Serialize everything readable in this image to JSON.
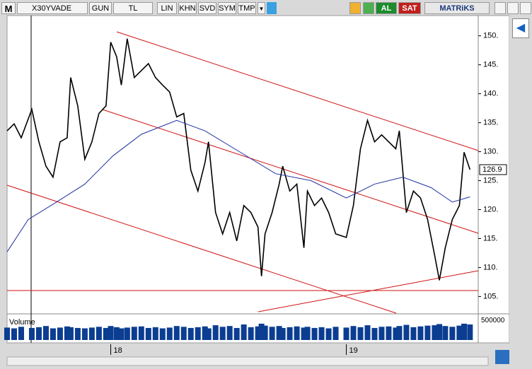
{
  "toolbar": {
    "logo": "M",
    "symbol": "X30YVADE",
    "period": "GUN",
    "currency": "TL",
    "buttons": [
      "LIN",
      "KHN",
      "SVD",
      "SYM",
      "TMP"
    ],
    "buy": "AL",
    "sell": "SAT",
    "brand": "MATRiKS"
  },
  "chart_data": [
    {
      "type": "line",
      "xlim": [
        17.56,
        19.56
      ],
      "xticks": [
        18,
        19
      ],
      "ylim": [
        102,
        153.5
      ],
      "yticks": [
        {
          "value": 105,
          "label": "105."
        },
        {
          "value": 110,
          "label": "110."
        },
        {
          "value": 115,
          "label": "115."
        },
        {
          "value": 120,
          "label": "120."
        },
        {
          "value": 125,
          "label": "125."
        },
        {
          "value": 130,
          "label": "130."
        },
        {
          "value": 135,
          "label": "135."
        },
        {
          "value": 140,
          "label": "140."
        },
        {
          "value": 145,
          "label": "145."
        },
        {
          "value": 150,
          "label": "150."
        }
      ],
      "last_value": 126.9,
      "series": [
        {
          "color": "#000000",
          "x": [
            17.56,
            17.59,
            17.62,
            17.665,
            17.695,
            17.725,
            17.755,
            17.785,
            17.815,
            17.83,
            17.86,
            17.89,
            17.92,
            17.95,
            17.98,
            18.0,
            18.025,
            18.045,
            18.07,
            18.1,
            18.13,
            18.16,
            18.19,
            18.22,
            18.25,
            18.28,
            18.31,
            18.34,
            18.37,
            18.4,
            18.415,
            18.445,
            18.475,
            18.505,
            18.535,
            18.565,
            18.595,
            18.625,
            18.64,
            18.655,
            18.685,
            18.715,
            18.73,
            18.76,
            18.79,
            18.82,
            18.835,
            18.865,
            18.895,
            18.925,
            18.955,
            19.0,
            19.03,
            19.06,
            19.09,
            19.12,
            19.15,
            19.18,
            19.21,
            19.225,
            19.255,
            19.285,
            19.315,
            19.345,
            19.375,
            19.395,
            19.42,
            19.45,
            19.48,
            19.5,
            19.525
          ],
          "values": [
            133.6,
            134.8,
            132.4,
            137.3,
            131.7,
            127.5,
            125.6,
            131.7,
            132.4,
            142.8,
            137.9,
            128.7,
            131.7,
            136.6,
            137.9,
            148.9,
            146.4,
            141.5,
            149.5,
            142.8,
            144.0,
            145.2,
            142.8,
            141.5,
            140.3,
            136.0,
            136.6,
            126.8,
            123.2,
            128.1,
            131.7,
            119.5,
            115.8,
            119.5,
            114.6,
            120.7,
            119.5,
            117.0,
            108.5,
            115.8,
            119.5,
            124.4,
            127.5,
            123.2,
            124.4,
            113.4,
            123.2,
            120.7,
            122.0,
            119.5,
            115.8,
            115.2,
            120.7,
            130.5,
            135.4,
            131.7,
            132.9,
            131.7,
            130.5,
            133.6,
            119.5,
            123.2,
            122.0,
            118.3,
            112.1,
            107.8,
            113.4,
            118.3,
            120.7,
            129.9,
            126.9
          ]
        },
        {
          "color": "#1f2fa0",
          "x": [
            17.56,
            17.65,
            17.77,
            17.89,
            18.01,
            18.13,
            18.28,
            18.4,
            18.55,
            18.7,
            18.85,
            19.0,
            19.12,
            19.24,
            19.36,
            19.45,
            19.525
          ],
          "values": [
            112.7,
            118.3,
            121.3,
            124.4,
            129.3,
            133.0,
            135.4,
            133.6,
            129.9,
            126.2,
            125.0,
            122.0,
            124.4,
            125.6,
            123.8,
            121.3,
            122.2
          ]
        }
      ]
    },
    {
      "type": "bar",
      "title": "Volume",
      "color": "#0b3d91",
      "ylim": [
        0,
        600000
      ],
      "yticks": [
        500000
      ],
      "x": [
        17.56,
        17.59,
        17.62,
        17.665,
        17.695,
        17.725,
        17.755,
        17.785,
        17.815,
        17.83,
        17.86,
        17.89,
        17.92,
        17.95,
        17.98,
        18.0,
        18.025,
        18.045,
        18.07,
        18.1,
        18.13,
        18.16,
        18.19,
        18.22,
        18.25,
        18.28,
        18.31,
        18.34,
        18.37,
        18.4,
        18.415,
        18.445,
        18.475,
        18.505,
        18.535,
        18.565,
        18.595,
        18.625,
        18.64,
        18.655,
        18.685,
        18.715,
        18.73,
        18.76,
        18.79,
        18.82,
        18.835,
        18.865,
        18.895,
        18.925,
        18.955,
        19.0,
        19.03,
        19.06,
        19.09,
        19.12,
        19.15,
        19.18,
        19.21,
        19.225,
        19.255,
        19.285,
        19.315,
        19.345,
        19.375,
        19.395,
        19.42,
        19.45,
        19.48,
        19.5,
        19.525
      ],
      "values": [
        320000,
        300000,
        340000,
        310000,
        330000,
        360000,
        300000,
        320000,
        350000,
        330000,
        310000,
        300000,
        320000,
        340000,
        310000,
        360000,
        330000,
        300000,
        320000,
        340000,
        350000,
        310000,
        330000,
        300000,
        320000,
        360000,
        340000,
        310000,
        330000,
        350000,
        300000,
        380000,
        340000,
        360000,
        310000,
        400000,
        330000,
        350000,
        420000,
        370000,
        340000,
        360000,
        310000,
        330000,
        350000,
        320000,
        340000,
        310000,
        330000,
        300000,
        340000,
        320000,
        360000,
        330000,
        380000,
        310000,
        340000,
        350000,
        320000,
        360000,
        390000,
        330000,
        350000,
        370000,
        380000,
        410000,
        360000,
        340000,
        370000,
        420000,
        400000
      ]
    }
  ]
}
